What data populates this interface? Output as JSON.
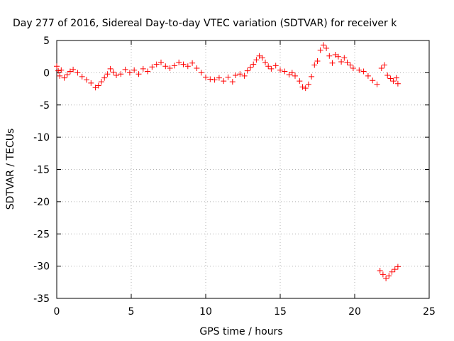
{
  "chart_data": {
    "type": "scatter",
    "title": "Day 277 of 2016, Sidereal Day-to-day VTEC variation (SDTVAR) for receiver k",
    "xlabel": "GPS time / hours",
    "ylabel": "SDTVAR / TECUs",
    "xlim": [
      0,
      25
    ],
    "ylim": [
      -35,
      5
    ],
    "x_ticks": [
      "0",
      "5",
      "10",
      "15",
      "20",
      "25"
    ],
    "y_ticks": [
      "5",
      "0",
      "-5",
      "-10",
      "-15",
      "-20",
      "-25",
      "-30",
      "-35"
    ],
    "grid": true,
    "marker": "plus",
    "series": [
      {
        "color": "#ff0000",
        "points": [
          [
            0.0,
            1.0
          ],
          [
            0.1,
            0.3
          ],
          [
            0.2,
            -0.5
          ],
          [
            0.3,
            0.4
          ],
          [
            0.5,
            -0.8
          ],
          [
            0.7,
            -0.3
          ],
          [
            0.9,
            0.2
          ],
          [
            1.1,
            0.5
          ],
          [
            1.4,
            0.0
          ],
          [
            1.7,
            -0.6
          ],
          [
            2.0,
            -1.1
          ],
          [
            2.3,
            -1.6
          ],
          [
            2.6,
            -2.3
          ],
          [
            2.8,
            -2.0
          ],
          [
            3.0,
            -1.4
          ],
          [
            3.2,
            -0.8
          ],
          [
            3.4,
            -0.2
          ],
          [
            3.6,
            0.6
          ],
          [
            3.8,
            0.1
          ],
          [
            4.0,
            -0.4
          ],
          [
            4.3,
            -0.2
          ],
          [
            4.6,
            0.5
          ],
          [
            4.9,
            0.0
          ],
          [
            5.2,
            0.4
          ],
          [
            5.5,
            -0.2
          ],
          [
            5.8,
            0.6
          ],
          [
            6.1,
            0.2
          ],
          [
            6.4,
            0.9
          ],
          [
            6.7,
            1.3
          ],
          [
            7.0,
            1.6
          ],
          [
            7.3,
            1.0
          ],
          [
            7.6,
            0.7
          ],
          [
            7.9,
            1.1
          ],
          [
            8.2,
            1.6
          ],
          [
            8.5,
            1.3
          ],
          [
            8.8,
            1.0
          ],
          [
            9.1,
            1.5
          ],
          [
            9.4,
            0.7
          ],
          [
            9.7,
            0.0
          ],
          [
            10.0,
            -0.7
          ],
          [
            10.3,
            -1.0
          ],
          [
            10.6,
            -1.1
          ],
          [
            10.9,
            -0.8
          ],
          [
            11.2,
            -1.3
          ],
          [
            11.5,
            -0.7
          ],
          [
            11.8,
            -1.4
          ],
          [
            12.0,
            -0.4
          ],
          [
            12.3,
            -0.2
          ],
          [
            12.6,
            -0.5
          ],
          [
            12.8,
            0.3
          ],
          [
            13.0,
            0.8
          ],
          [
            13.2,
            1.3
          ],
          [
            13.4,
            2.0
          ],
          [
            13.6,
            2.6
          ],
          [
            13.8,
            2.3
          ],
          [
            14.0,
            1.6
          ],
          [
            14.2,
            1.0
          ],
          [
            14.4,
            0.6
          ],
          [
            14.7,
            1.1
          ],
          [
            15.0,
            0.4
          ],
          [
            15.3,
            0.2
          ],
          [
            15.6,
            -0.3
          ],
          [
            15.8,
            0.0
          ],
          [
            16.0,
            -0.5
          ],
          [
            16.3,
            -1.3
          ],
          [
            16.5,
            -2.2
          ],
          [
            16.7,
            -2.4
          ],
          [
            16.9,
            -1.8
          ],
          [
            17.1,
            -0.6
          ],
          [
            17.3,
            1.2
          ],
          [
            17.5,
            1.8
          ],
          [
            17.7,
            3.5
          ],
          [
            17.9,
            4.3
          ],
          [
            18.1,
            3.8
          ],
          [
            18.3,
            2.6
          ],
          [
            18.5,
            1.5
          ],
          [
            18.7,
            2.8
          ],
          [
            18.9,
            2.5
          ],
          [
            19.1,
            1.7
          ],
          [
            19.3,
            2.3
          ],
          [
            19.5,
            1.6
          ],
          [
            19.7,
            1.2
          ],
          [
            19.9,
            0.7
          ],
          [
            20.3,
            0.4
          ],
          [
            20.6,
            0.2
          ],
          [
            20.9,
            -0.5
          ],
          [
            21.2,
            -1.2
          ],
          [
            21.5,
            -1.8
          ],
          [
            21.8,
            0.7
          ],
          [
            22.0,
            1.2
          ],
          [
            22.2,
            -0.4
          ],
          [
            22.4,
            -0.9
          ],
          [
            22.6,
            -1.3
          ],
          [
            22.8,
            -0.8
          ],
          [
            22.9,
            -1.7
          ],
          [
            21.7,
            -30.7
          ],
          [
            21.9,
            -31.3
          ],
          [
            22.1,
            -31.9
          ],
          [
            22.3,
            -31.5
          ],
          [
            22.5,
            -30.9
          ],
          [
            22.7,
            -30.5
          ],
          [
            22.9,
            -30.1
          ]
        ]
      }
    ]
  }
}
